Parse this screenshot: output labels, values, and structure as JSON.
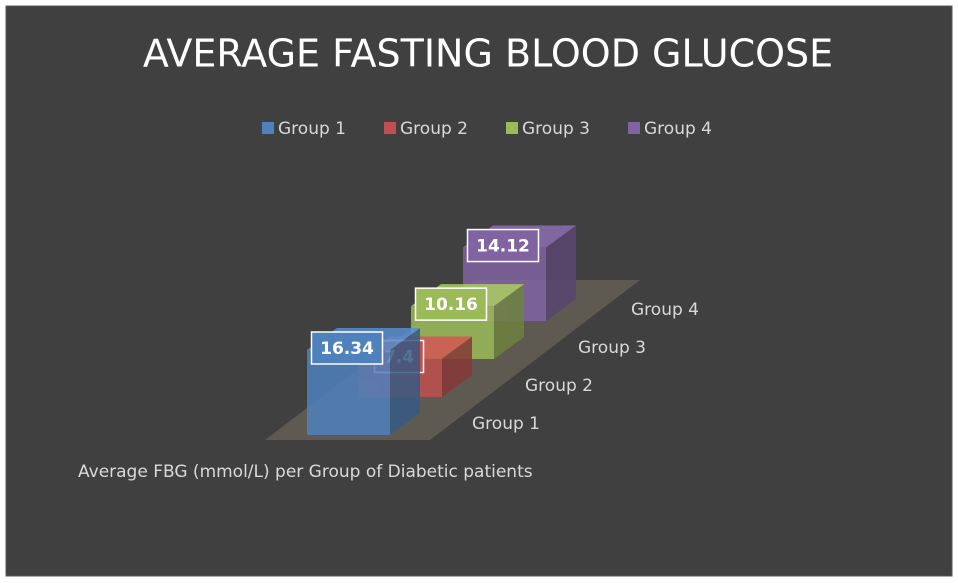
{
  "chart_data": {
    "type": "bar3d",
    "title": "AVERAGE FASTING BLOOD GLUCOSE",
    "categories": [
      "Average FBG (mmol/L) per Group of Diabetic patients"
    ],
    "series": [
      {
        "name": "Group 1",
        "color": "#4f81bd",
        "values": [
          16.34
        ]
      },
      {
        "name": "Group 2",
        "color": "#c0504d",
        "values": [
          7.4
        ]
      },
      {
        "name": "Group 3",
        "color": "#9bbb59",
        "values": [
          10.16
        ]
      },
      {
        "name": "Group 4",
        "color": "#8064a2",
        "values": [
          14.12
        ]
      }
    ],
    "legend": "top"
  }
}
